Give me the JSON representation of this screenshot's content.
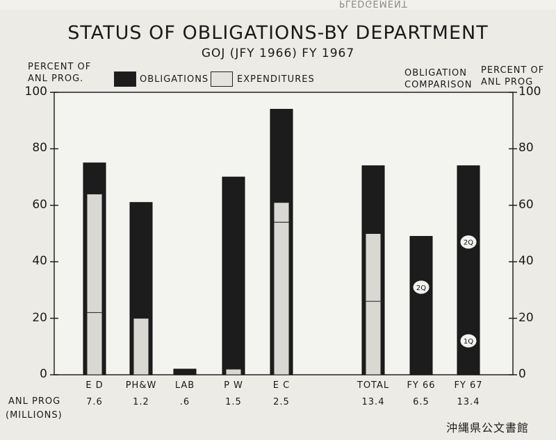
{
  "top_scrap_text": "PLEDGEMENT",
  "title": "STATUS OF OBLIGATIONS-BY DEPARTMENT",
  "subtitle": "GOJ (JFY 1966) FY 1967",
  "left_axis_title": "PERCENT OF\nANL PROG.",
  "right_axis_title": "PERCENT OF\nANL PROG",
  "comparison_heading": "OBLIGATION\nCOMPARISON",
  "row_label_line1": "ANL PROG",
  "row_label_line2": "(MILLIONS)",
  "archive_stamp": "沖縄県公文書館",
  "colors": {
    "obligations": "#1c1c1c",
    "expenditures": "#d9d8d3",
    "paper": "#ecebe6",
    "ink": "#1a1a1a"
  },
  "chart_data": {
    "type": "bar",
    "title": "STATUS OF OBLIGATIONS-BY DEPARTMENT",
    "subtitle": "GOJ (JFY 1966) FY 1967",
    "ylabel": "PERCENT OF ANL PROG.",
    "ylim": [
      0,
      100
    ],
    "yticks": [
      "0",
      "20",
      "40",
      "60",
      "80",
      "100"
    ],
    "legend": {
      "placement": "top",
      "entries": [
        "OBLIGATIONS",
        "EXPENDITURES"
      ]
    },
    "categories": [
      "E D",
      "PH&W",
      "LAB",
      "P W",
      "E C",
      "TOTAL",
      "FY 66",
      "FY 67"
    ],
    "anl_prog_millions": [
      "7.6",
      "1.2",
      ".6",
      "1.5",
      "2.5",
      "13.4",
      "6.5",
      "13.4"
    ],
    "series": [
      {
        "name": "OBLIGATIONS",
        "values": [
          75,
          61,
          2,
          70,
          94,
          74,
          49,
          74
        ]
      },
      {
        "name": "EXPENDITURES",
        "values": [
          64,
          20,
          0,
          2,
          61,
          50,
          null,
          null
        ]
      }
    ],
    "expenditure_dividers": [
      22,
      null,
      null,
      null,
      54,
      26,
      null,
      null
    ],
    "annotations": [
      {
        "category": "FY 66",
        "label": "2Q",
        "y": 31
      },
      {
        "category": "FY 67",
        "label": "2Q",
        "y": 47
      },
      {
        "category": "FY 67",
        "label": "1Q",
        "y": 12
      }
    ]
  }
}
